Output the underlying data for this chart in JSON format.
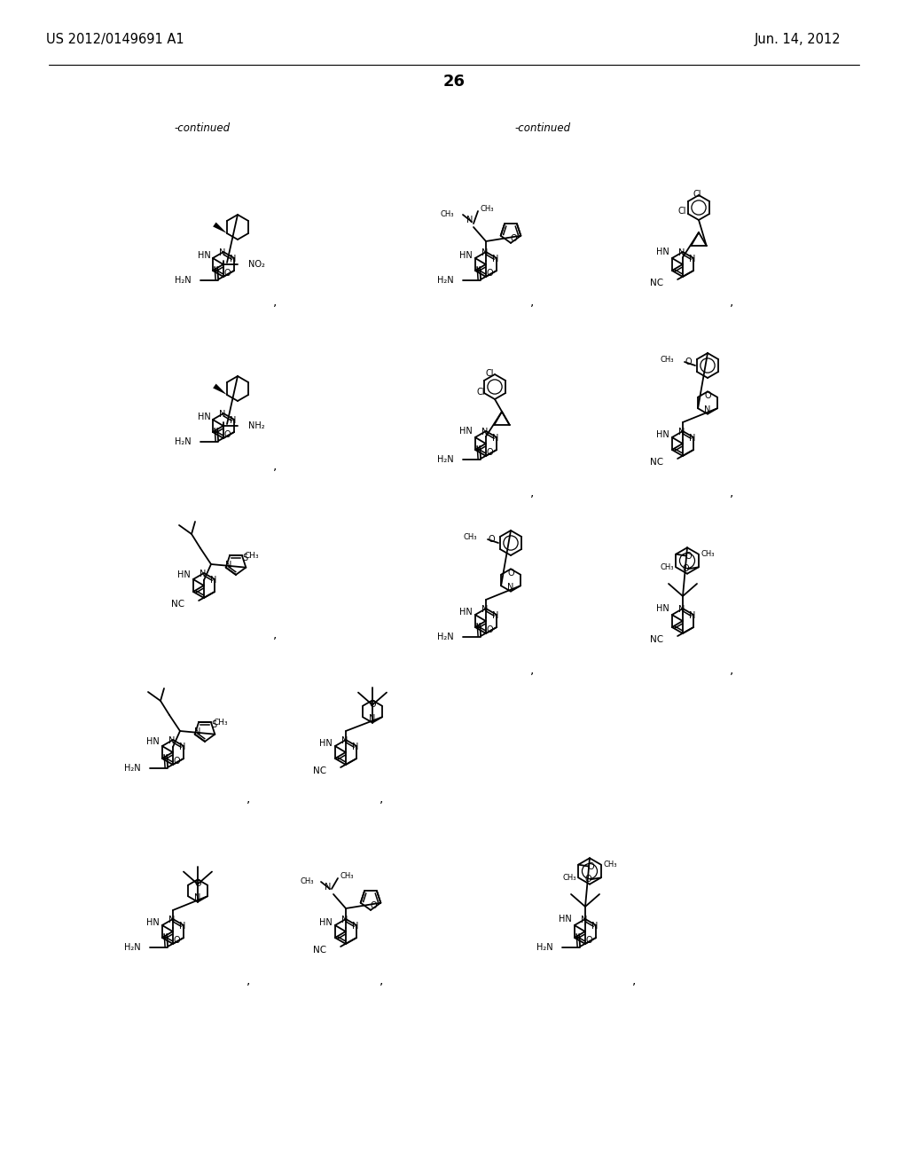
{
  "bg": "#ffffff",
  "header_left": "US 2012/0149691 A1",
  "header_right": "Jun. 14, 2012",
  "page_num": "26",
  "cont_left": "-continued",
  "cont_right": "-continued"
}
